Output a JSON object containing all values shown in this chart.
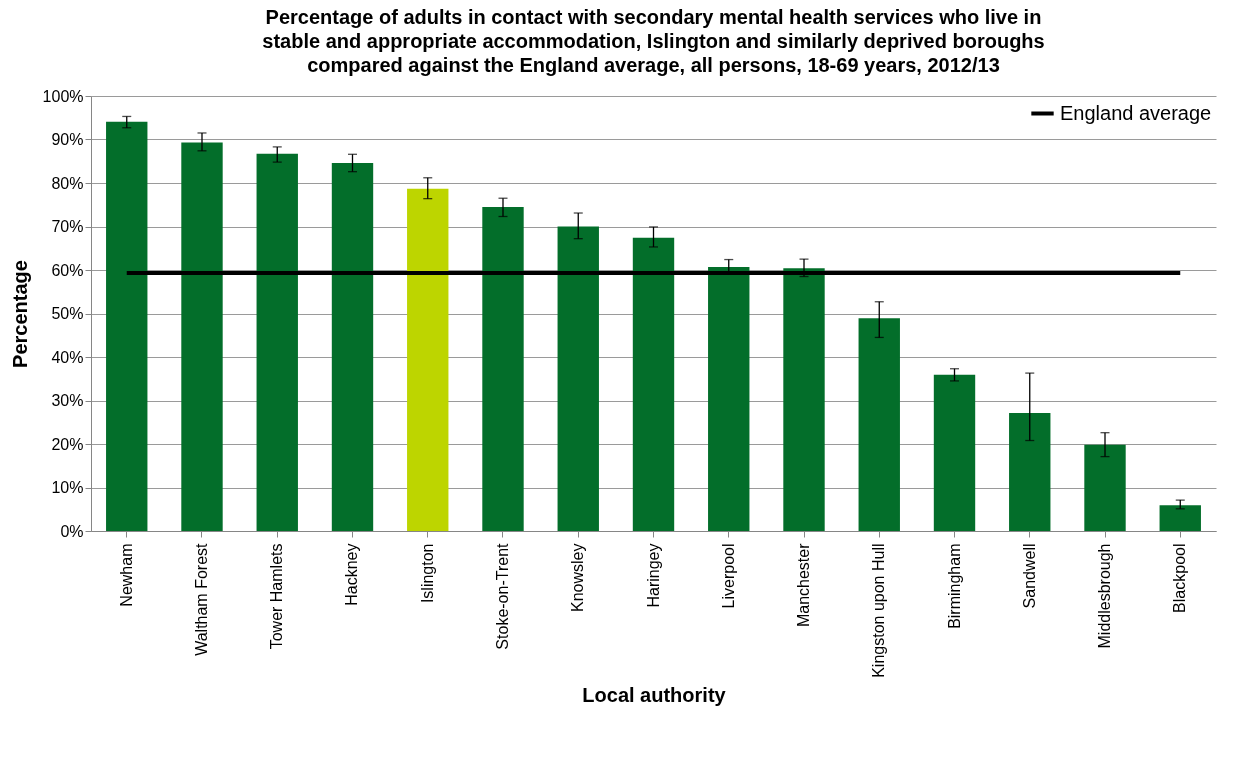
{
  "chart_data": {
    "type": "bar",
    "title": "Percentage of adults in contact with secondary mental health services who live in stable and appropriate accommodation, Islington and similarly deprived boroughs compared against the England average, all persons, 18-69 years, 2012/13",
    "xlabel": "Local authority",
    "ylabel": "Percentage",
    "categories": [
      "Newham",
      "Waltham Forest",
      "Tower Hamlets",
      "Hackney",
      "Islington",
      "Stoke-on-Trent",
      "Knowsley",
      "Haringey",
      "Liverpool",
      "Manchester",
      "Kingston upon Hull",
      "Birmingham",
      "Sandwell",
      "Middlesbrough",
      "Blackpool"
    ],
    "series": [
      {
        "values": [
          94.1,
          89.3,
          86.7,
          84.6,
          78.7,
          74.5,
          70.0,
          67.4,
          60.7,
          60.4,
          48.9,
          35.9,
          27.1,
          19.8,
          5.9
        ],
        "colors": [
          "#036e2a",
          "#036e2a",
          "#036e2a",
          "#036e2a",
          "#bdd500",
          "#036e2a",
          "#036e2a",
          "#036e2a",
          "#036e2a",
          "#036e2a",
          "#036e2a",
          "#036e2a",
          "#036e2a",
          "#036e2a",
          "#036e2a"
        ],
        "errors": [
          [
            92.7,
            95.3
          ],
          [
            87.4,
            91.5
          ],
          [
            84.8,
            88.3
          ],
          [
            82.6,
            86.6
          ],
          [
            76.4,
            81.2
          ],
          [
            72.3,
            76.5
          ],
          [
            67.2,
            73.1
          ],
          [
            65.3,
            69.9
          ],
          [
            59.3,
            62.4
          ],
          [
            58.5,
            62.5
          ],
          [
            44.5,
            52.7
          ],
          [
            34.5,
            37.3
          ],
          [
            20.8,
            36.3
          ],
          [
            17.1,
            22.6
          ],
          [
            5.1,
            7.1
          ]
        ]
      },
      {
        "type": "line",
        "name": "England average",
        "color": "#000000",
        "values": [
          59.3,
          59.3,
          59.3,
          59.3,
          59.3,
          59.3,
          59.3,
          59.3,
          59.3,
          59.3,
          59.3,
          59.3,
          59.3,
          59.3,
          59.3
        ]
      }
    ],
    "ylim": [
      0,
      100
    ],
    "yticks": [
      {
        "value": 0,
        "label": "0%"
      },
      {
        "value": 10,
        "label": "10%"
      },
      {
        "value": 20,
        "label": "20%"
      },
      {
        "value": 30,
        "label": "30%"
      },
      {
        "value": 40,
        "label": "40%"
      },
      {
        "value": 50,
        "label": "50%"
      },
      {
        "value": 60,
        "label": "60%"
      },
      {
        "value": 70,
        "label": "70%"
      },
      {
        "value": 80,
        "label": "80%"
      },
      {
        "value": 90,
        "label": "90%"
      },
      {
        "value": 100,
        "label": "100%"
      }
    ],
    "grid": "y",
    "legend": "top right",
    "marker": "none",
    "line_style": "solid"
  }
}
